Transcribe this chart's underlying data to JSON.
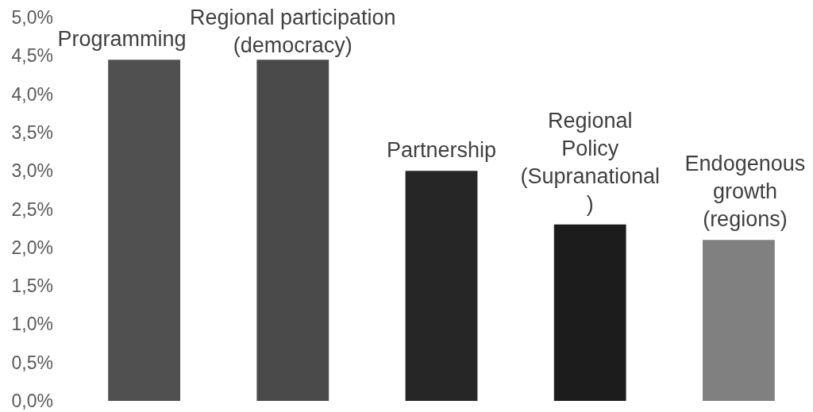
{
  "chart_data": {
    "type": "bar",
    "categories": [
      "Programming",
      "Regional participation (democracy)",
      "Partnership",
      "Regional Policy (Supranational)",
      "Endogenous growth (regions)"
    ],
    "values": [
      4.45,
      4.45,
      3.0,
      2.3,
      2.1
    ],
    "colors": [
      "#505050",
      "#4a4a4a",
      "#262626",
      "#1c1c1c",
      "#808080"
    ],
    "ylim": [
      0,
      5
    ],
    "yticks": [
      {
        "value": 0,
        "label": "0,0%"
      },
      {
        "value": 0.5,
        "label": "0,5%"
      },
      {
        "value": 1,
        "label": "1,0%"
      },
      {
        "value": 1.5,
        "label": "1,5%"
      },
      {
        "value": 2,
        "label": "2,0%"
      },
      {
        "value": 2.5,
        "label": "2,5%"
      },
      {
        "value": 3,
        "label": "3,0%"
      },
      {
        "value": 3.5,
        "label": "3,5%"
      },
      {
        "value": 4,
        "label": "4,0%"
      },
      {
        "value": 4.5,
        "label": "4,5%"
      },
      {
        "value": 5,
        "label": "5,0%"
      }
    ]
  }
}
